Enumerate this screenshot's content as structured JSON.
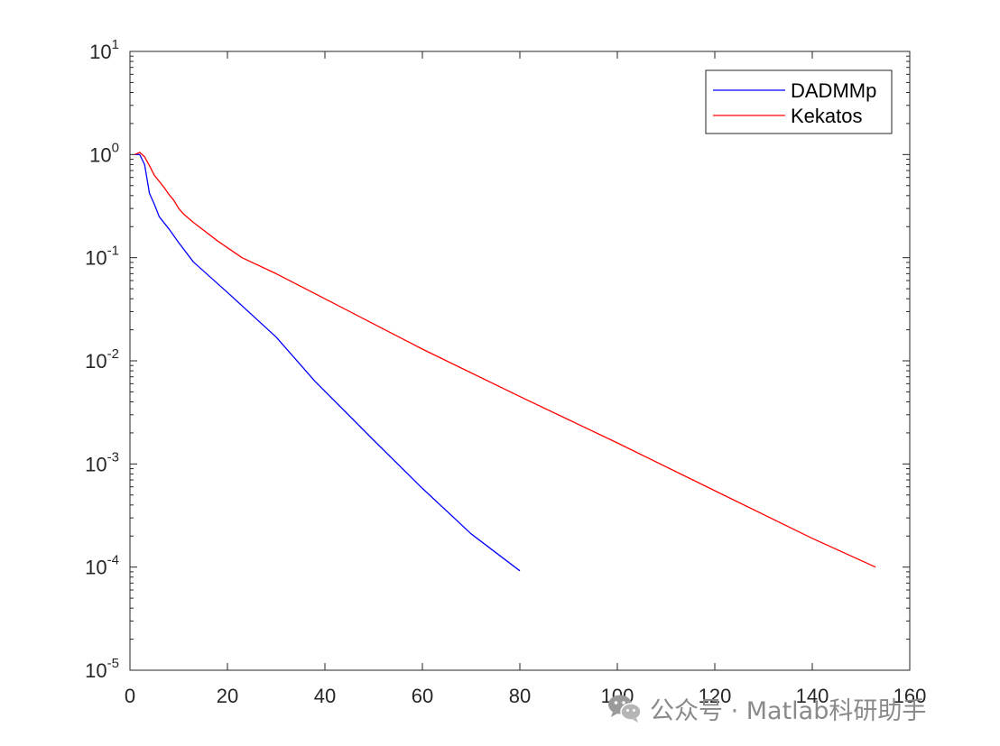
{
  "chart_data": {
    "type": "line",
    "yscale": "log",
    "xlim": [
      0,
      160
    ],
    "ylim": [
      1e-05,
      10
    ],
    "xticks": [
      0,
      20,
      40,
      60,
      80,
      100,
      120,
      140,
      160
    ],
    "xtick_labels": [
      "0",
      "20",
      "40",
      "60",
      "80",
      "100",
      "120",
      "140",
      "160"
    ],
    "yticks": [
      1e-05,
      0.0001,
      0.001,
      0.01,
      0.1,
      1,
      10
    ],
    "ytick_labels": [
      {
        "base": "10",
        "exp": "-5"
      },
      {
        "base": "10",
        "exp": "-4"
      },
      {
        "base": "10",
        "exp": "-3"
      },
      {
        "base": "10",
        "exp": "-2"
      },
      {
        "base": "10",
        "exp": "-1"
      },
      {
        "base": "10",
        "exp": "0"
      },
      {
        "base": "10",
        "exp": "1"
      }
    ],
    "grid": false,
    "legend_position": "top-right",
    "series": [
      {
        "name": "DADMMp",
        "color": "#0000ff",
        "x": [
          1,
          2,
          3,
          4,
          5,
          6,
          8,
          10,
          13,
          20,
          30,
          38,
          50,
          60,
          70,
          80
        ],
        "y": [
          1.0,
          1.0,
          0.8,
          0.42,
          0.33,
          0.25,
          0.19,
          0.14,
          0.091,
          0.046,
          0.017,
          0.0063,
          0.0017,
          0.00058,
          0.00021,
          9.2e-05
        ]
      },
      {
        "name": "Kekatos",
        "color": "#ff0000",
        "x": [
          1,
          2,
          3,
          4,
          5,
          6,
          7,
          8,
          9,
          10,
          11,
          13,
          18,
          23,
          30,
          40,
          60,
          80,
          100,
          120,
          140,
          153
        ],
        "y": [
          1.0,
          1.05,
          0.95,
          0.78,
          0.63,
          0.55,
          0.48,
          0.41,
          0.36,
          0.3,
          0.265,
          0.22,
          0.145,
          0.1,
          0.07,
          0.04,
          0.013,
          0.0045,
          0.0016,
          0.00055,
          0.00019,
          0.0001
        ]
      }
    ]
  },
  "watermark": {
    "icon": "wechat-icon",
    "text": "公众号 · Matlab科研助手"
  }
}
